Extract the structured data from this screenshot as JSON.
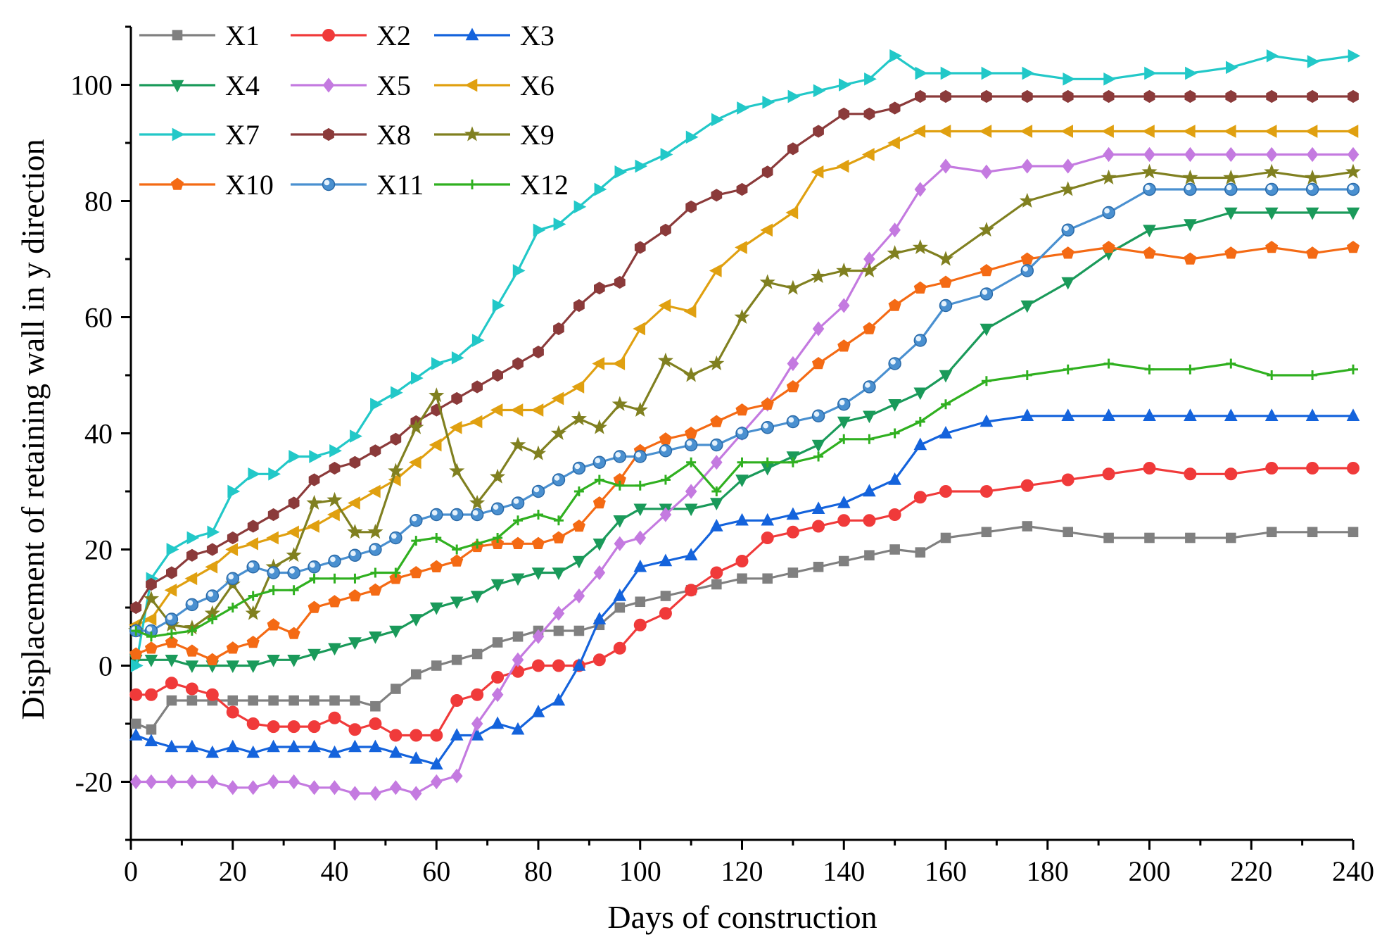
{
  "chart_data": {
    "type": "line",
    "xlabel": "Days of construction",
    "ylabel": "Displacement of retaining wall in y direction",
    "xlim": [
      0,
      240
    ],
    "ylim": [
      -30,
      110
    ],
    "xticks": [
      0,
      20,
      40,
      60,
      80,
      100,
      120,
      140,
      160,
      180,
      200,
      220,
      240
    ],
    "yticks": [
      -20,
      0,
      20,
      40,
      60,
      80,
      100
    ],
    "grid": false,
    "legend_position": "top-left",
    "x": [
      1,
      4,
      8,
      12,
      16,
      20,
      24,
      28,
      32,
      36,
      40,
      44,
      48,
      52,
      56,
      60,
      64,
      68,
      72,
      76,
      80,
      84,
      88,
      92,
      96,
      100,
      105,
      110,
      115,
      120,
      125,
      130,
      135,
      140,
      145,
      150,
      155,
      160,
      168,
      176,
      184,
      192,
      200,
      208,
      216,
      224,
      232,
      240
    ],
    "series": [
      {
        "name": "X1",
        "color": "#808080",
        "marker": "square",
        "values": [
          -10,
          -11,
          -6,
          -6,
          -6,
          -6,
          -6,
          -6,
          -6,
          -6,
          -6,
          -6,
          -7,
          -4,
          -1.5,
          0,
          1,
          2,
          4,
          5,
          6,
          6,
          6,
          7,
          10,
          11,
          12,
          13,
          14,
          15,
          15,
          16,
          17,
          18,
          19,
          20,
          19.5,
          22,
          23,
          24,
          23,
          22,
          22,
          22,
          22,
          23,
          23,
          23
        ]
      },
      {
        "name": "X2",
        "color": "#f03a3a",
        "marker": "circle",
        "values": [
          -5,
          -5,
          -3,
          -4,
          -5,
          -8,
          -10,
          -10.5,
          -10.5,
          -10.5,
          -9,
          -11,
          -10,
          -12,
          -12,
          -12,
          -6,
          -5,
          -2,
          -1,
          0,
          0,
          0,
          1,
          3,
          7,
          9,
          13,
          16,
          18,
          22,
          23,
          24,
          25,
          25,
          26,
          29,
          30,
          30,
          31,
          32,
          33,
          34,
          33,
          33,
          34,
          34,
          34
        ]
      },
      {
        "name": "X3",
        "color": "#1463dc",
        "marker": "triangle-up",
        "values": [
          -12,
          -13,
          -14,
          -14,
          -15,
          -14,
          -15,
          -14,
          -14,
          -14,
          -15,
          -14,
          -14,
          -15,
          -16,
          -17,
          -12,
          -12,
          -10,
          -11,
          -8,
          -6,
          0,
          8,
          12,
          17,
          18,
          19,
          24,
          25,
          25,
          26,
          27,
          28,
          30,
          32,
          38,
          40,
          42,
          43,
          43,
          43,
          43,
          43,
          43,
          43,
          43,
          43
        ]
      },
      {
        "name": "X4",
        "color": "#1a9a5a",
        "marker": "triangle-down",
        "values": [
          1,
          1,
          1,
          0,
          0,
          0,
          0,
          1,
          1,
          2,
          3,
          4,
          5,
          6,
          8,
          10,
          11,
          12,
          14,
          15,
          16,
          16,
          18,
          21,
          25,
          27,
          27,
          27,
          28,
          32,
          34,
          36,
          38,
          42,
          43,
          45,
          47,
          50,
          58,
          62,
          66,
          71,
          75,
          76,
          78,
          78,
          78,
          78
        ]
      },
      {
        "name": "X5",
        "color": "#c47ae0",
        "marker": "diamond",
        "values": [
          -20,
          -20,
          -20,
          -20,
          -20,
          -21,
          -21,
          -20,
          -20,
          -21,
          -21,
          -22,
          -22,
          -21,
          -22,
          -20,
          -19,
          -10,
          -5,
          1,
          5,
          9,
          12,
          16,
          21,
          22,
          26,
          30,
          35,
          40,
          45,
          52,
          58,
          62,
          70,
          75,
          82,
          86,
          85,
          86,
          86,
          88,
          88,
          88,
          88,
          88,
          88,
          88
        ]
      },
      {
        "name": "X6",
        "color": "#e0a010",
        "marker": "triangle-left",
        "values": [
          7,
          8,
          13,
          15,
          17,
          20,
          21,
          22,
          23,
          24,
          26,
          28,
          30,
          32,
          35,
          38,
          41,
          42,
          44,
          44,
          44,
          46,
          48,
          52,
          52,
          58,
          62,
          61,
          68,
          72,
          75,
          78,
          85,
          86,
          88,
          90,
          92,
          92,
          92,
          92,
          92,
          92,
          92,
          92,
          92,
          92,
          92,
          92
        ]
      },
      {
        "name": "X7",
        "color": "#22c8c8",
        "marker": "triangle-right",
        "values": [
          0,
          15,
          20,
          22,
          23,
          30,
          33,
          33,
          36,
          36,
          37,
          39.5,
          45,
          47,
          49.5,
          52,
          53,
          56,
          62,
          68,
          75,
          76,
          79,
          82,
          85,
          86,
          88,
          91,
          94,
          96,
          97,
          98,
          99,
          100,
          101,
          105,
          102,
          102,
          102,
          102,
          101,
          101,
          102,
          102,
          103,
          105,
          104,
          105
        ]
      },
      {
        "name": "X8",
        "color": "#8b3a3a",
        "marker": "hexagon",
        "values": [
          10,
          14,
          16,
          19,
          20,
          22,
          24,
          26,
          28,
          32,
          34,
          35,
          37,
          39,
          42,
          44,
          46,
          48,
          50,
          52,
          54,
          58,
          62,
          65,
          66,
          72,
          75,
          79,
          81,
          82,
          85,
          89,
          92,
          95,
          95,
          96,
          98,
          98,
          98,
          98,
          98,
          98,
          98,
          98,
          98,
          98,
          98,
          98
        ]
      },
      {
        "name": "X9",
        "color": "#808020",
        "marker": "star",
        "values": [
          6,
          11.5,
          7,
          6.5,
          9,
          14,
          9,
          17,
          19,
          28,
          28.5,
          23,
          23,
          33.5,
          41,
          46.5,
          33.5,
          28,
          32.5,
          38,
          36.5,
          40,
          42.5,
          41,
          45,
          44,
          52.5,
          50,
          52,
          60,
          66,
          65,
          67,
          68,
          68,
          71,
          72,
          70,
          75,
          80,
          82,
          84,
          85,
          84,
          84,
          85,
          84,
          85
        ]
      },
      {
        "name": "X10",
        "color": "#f46a14",
        "marker": "pentagon",
        "values": [
          2,
          3,
          4,
          2.5,
          1,
          3,
          4,
          7,
          5.5,
          10,
          11,
          12,
          13,
          15,
          16,
          17,
          18,
          20.5,
          21,
          21,
          21,
          22,
          24,
          28,
          32,
          37,
          39,
          40,
          42,
          44,
          45,
          48,
          52,
          55,
          58,
          62,
          65,
          66,
          68,
          70,
          71,
          72,
          71,
          70,
          71,
          72,
          71,
          72
        ]
      },
      {
        "name": "X11",
        "color": "#4a90d0",
        "marker": "sphere",
        "values": [
          6,
          6,
          8,
          10.5,
          12,
          15,
          17,
          16,
          16,
          17,
          18,
          19,
          20,
          22,
          25,
          26,
          26,
          26,
          27,
          28,
          30,
          32,
          34,
          35,
          36,
          36,
          37,
          38,
          38,
          40,
          41,
          42,
          43,
          45,
          48,
          52,
          56,
          62,
          64,
          68,
          75,
          78,
          82,
          82,
          82,
          82,
          82,
          82
        ]
      },
      {
        "name": "X12",
        "color": "#30b020",
        "marker": "plus",
        "values": [
          6,
          5,
          5.5,
          6,
          8,
          10,
          12,
          13,
          13,
          15,
          15,
          15,
          16,
          16,
          21.5,
          22,
          20,
          21,
          22,
          25,
          26,
          25,
          30,
          32,
          31,
          31,
          32,
          35,
          30,
          35,
          35,
          35,
          36,
          39,
          39,
          40,
          42,
          45,
          49,
          50,
          51,
          52,
          51,
          51,
          52,
          50,
          50,
          51
        ]
      }
    ]
  }
}
